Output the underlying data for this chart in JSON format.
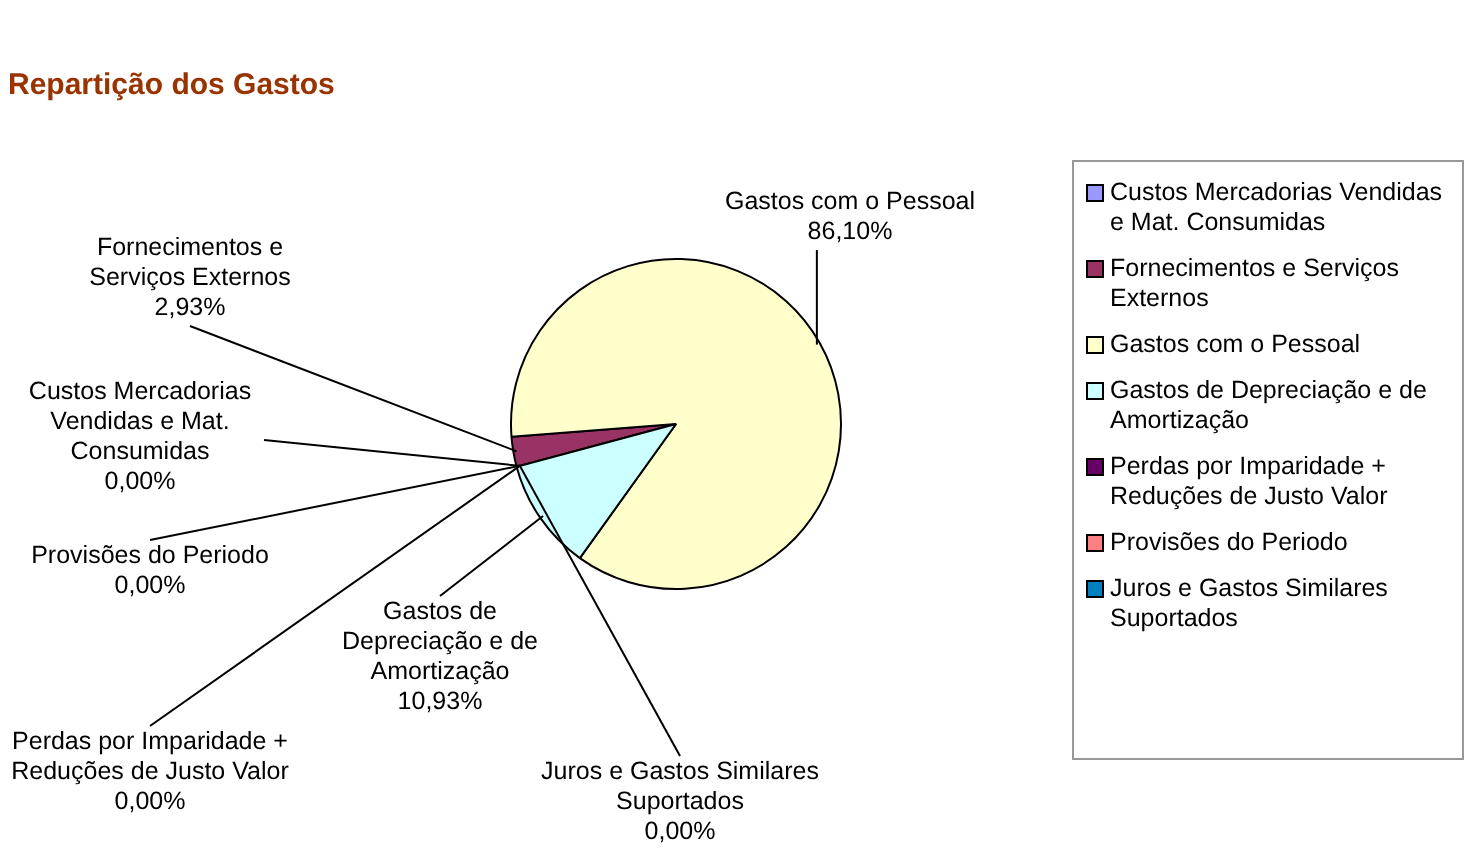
{
  "chart_data": {
    "type": "pie",
    "title": "Repartição dos Gastos",
    "categories": [
      "Custos Mercadorias Vendidas e Mat. Consumidas",
      "Fornecimentos e Serviços Externos",
      "Gastos com o Pessoal",
      "Gastos de Depreciação e de Amortização",
      "Perdas por Imparidade + Reduções de Justo Valor",
      "Provisões do Periodo",
      "Juros e Gastos Similares Suportados"
    ],
    "values": [
      0,
      2.93,
      86.1,
      10.93,
      0,
      0,
      0
    ],
    "value_labels": [
      "0,00%",
      "2,93%",
      "86,10%",
      "10,93%",
      "0,00%",
      "0,00%",
      "0,00%"
    ],
    "colors": [
      "#9999ff",
      "#993366",
      "#ffffcc",
      "#ccffff",
      "#660066",
      "#ff8080",
      "#0080c0"
    ],
    "legend": "right"
  }
}
